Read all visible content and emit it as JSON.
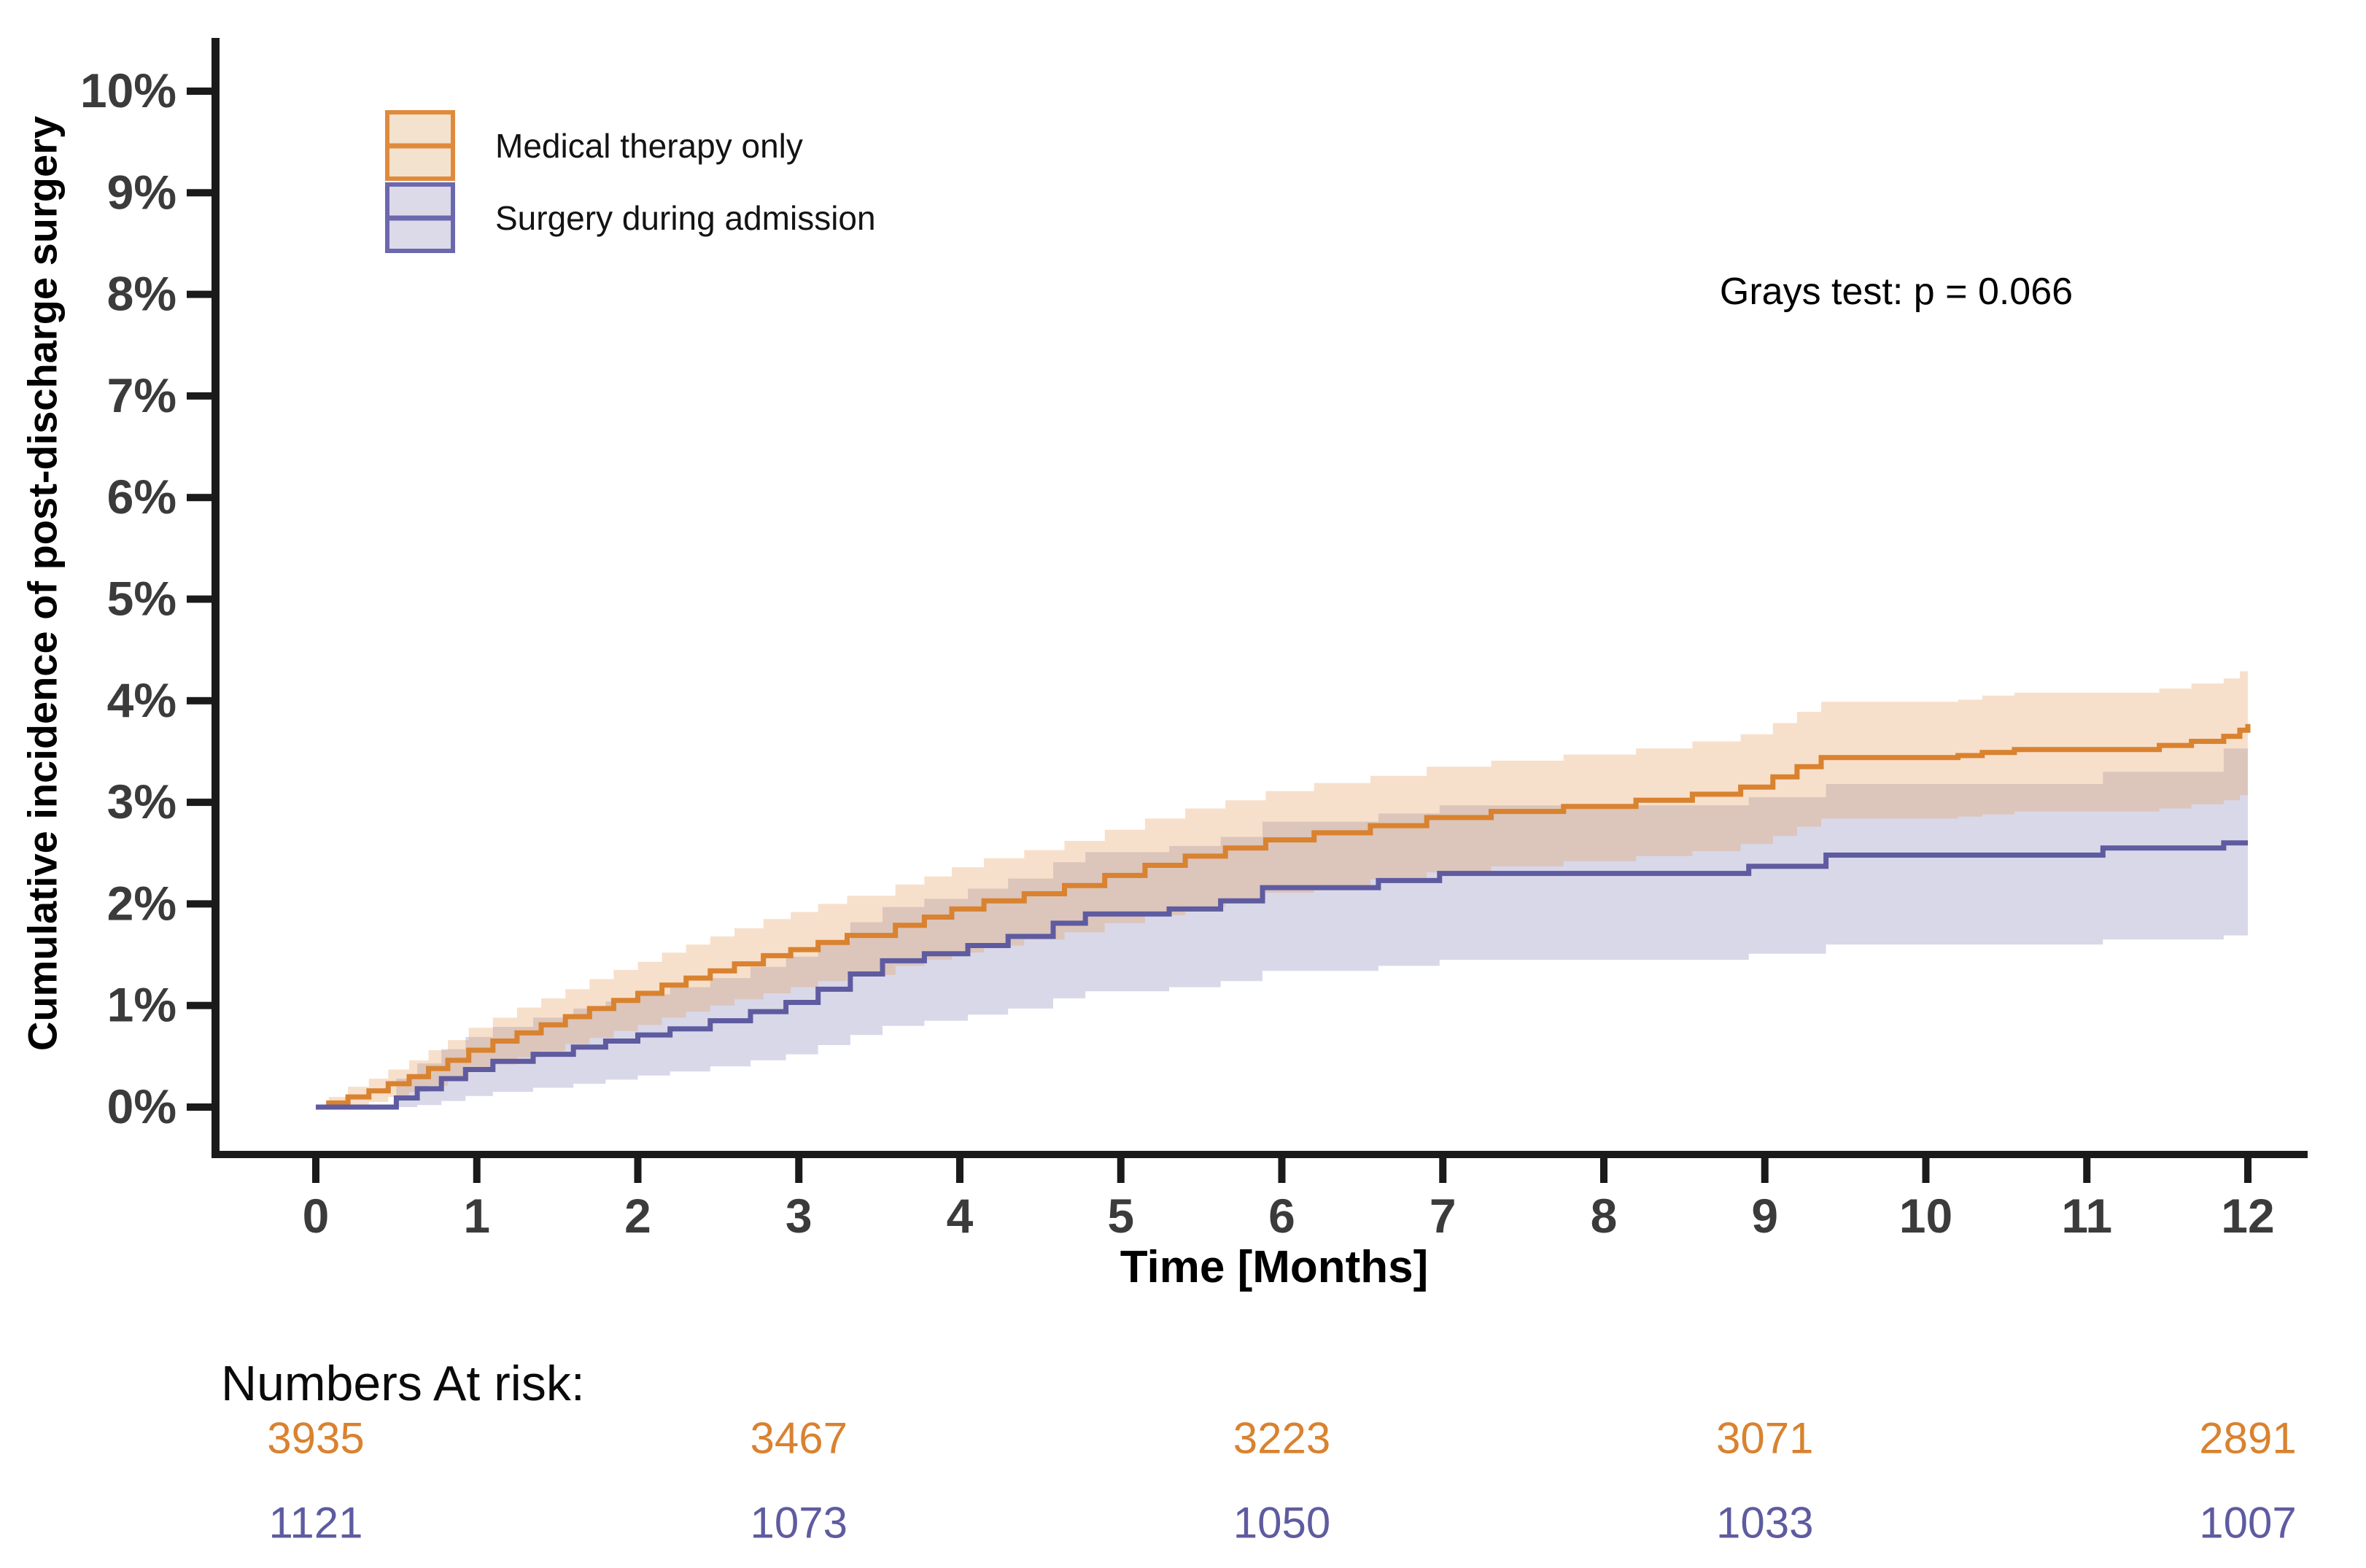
{
  "legend": {
    "items": [
      {
        "label": "Medical therapy only",
        "line_color": "#D9822F",
        "fill_color": "#F3E2CD"
      },
      {
        "label": "Surgery during admission",
        "line_color": "#5E5BA0",
        "fill_color": "#DCDAE9"
      }
    ]
  },
  "annotation": {
    "text": "Grays test: p = 0.066"
  },
  "chart_data": {
    "type": "line",
    "subtype": "cumulative-incidence-step-with-ci-bands",
    "title": "",
    "xlabel": "Time [Months]",
    "ylabel": "Cumulative incidence of post-discharge surgery",
    "xlim": [
      0,
      12
    ],
    "ylim": [
      0,
      10
    ],
    "grid": false,
    "legend_position": "top-left",
    "x_ticks": [
      0,
      1,
      2,
      3,
      4,
      5,
      6,
      7,
      8,
      9,
      10,
      11,
      12
    ],
    "y_ticks": [
      "0%",
      "1%",
      "2%",
      "3%",
      "4%",
      "5%",
      "6%",
      "7%",
      "8%",
      "9%",
      "10%"
    ],
    "axis_color": "#1a1a1a",
    "tick_label_color": "#3b3b3b",
    "series": [
      {
        "name": "Medical therapy only",
        "color": "#D9822F",
        "band_color": "rgba(228,152,82,0.30)",
        "points_format": [
          "t_months",
          "estimate_pct",
          "ci_low_pct",
          "ci_high_pct"
        ],
        "points": [
          [
            0,
            0,
            0,
            0
          ],
          [
            0.08,
            0.04,
            0,
            0.1
          ],
          [
            0.2,
            0.1,
            0.02,
            0.2
          ],
          [
            0.33,
            0.16,
            0.05,
            0.28
          ],
          [
            0.45,
            0.23,
            0.1,
            0.37
          ],
          [
            0.58,
            0.3,
            0.15,
            0.46
          ],
          [
            0.7,
            0.38,
            0.21,
            0.56
          ],
          [
            0.82,
            0.46,
            0.27,
            0.66
          ],
          [
            0.95,
            0.56,
            0.35,
            0.78
          ],
          [
            1.1,
            0.65,
            0.42,
            0.88
          ],
          [
            1.25,
            0.73,
            0.49,
            0.98
          ],
          [
            1.4,
            0.81,
            0.55,
            1.07
          ],
          [
            1.55,
            0.89,
            0.62,
            1.16
          ],
          [
            1.7,
            0.97,
            0.68,
            1.26
          ],
          [
            1.85,
            1.05,
            0.75,
            1.35
          ],
          [
            2.0,
            1.12,
            0.81,
            1.43
          ],
          [
            2.15,
            1.2,
            0.88,
            1.52
          ],
          [
            2.3,
            1.27,
            0.94,
            1.6
          ],
          [
            2.45,
            1.34,
            1.0,
            1.68
          ],
          [
            2.6,
            1.41,
            1.06,
            1.76
          ],
          [
            2.78,
            1.49,
            1.12,
            1.85
          ],
          [
            2.95,
            1.55,
            1.18,
            1.92
          ],
          [
            3.12,
            1.62,
            1.24,
            2.0
          ],
          [
            3.3,
            1.69,
            1.3,
            2.08
          ],
          [
            3.6,
            1.79,
            1.39,
            2.19
          ],
          [
            3.78,
            1.87,
            1.45,
            2.27
          ],
          [
            3.95,
            1.95,
            1.52,
            2.36
          ],
          [
            4.15,
            2.03,
            1.59,
            2.45
          ],
          [
            4.4,
            2.1,
            1.65,
            2.53
          ],
          [
            4.65,
            2.18,
            1.72,
            2.62
          ],
          [
            4.9,
            2.28,
            1.81,
            2.73
          ],
          [
            5.15,
            2.38,
            1.89,
            2.84
          ],
          [
            5.4,
            2.47,
            1.97,
            2.94
          ],
          [
            5.65,
            2.55,
            2.04,
            3.02
          ],
          [
            5.9,
            2.63,
            2.11,
            3.11
          ],
          [
            6.2,
            2.7,
            2.18,
            3.19
          ],
          [
            6.55,
            2.77,
            2.24,
            3.26
          ],
          [
            6.9,
            2.85,
            2.31,
            3.35
          ],
          [
            7.3,
            2.91,
            2.37,
            3.41
          ],
          [
            7.75,
            2.96,
            2.42,
            3.47
          ],
          [
            8.2,
            3.02,
            2.47,
            3.53
          ],
          [
            8.55,
            3.08,
            2.52,
            3.6
          ],
          [
            8.85,
            3.15,
            2.59,
            3.67
          ],
          [
            9.05,
            3.25,
            2.67,
            3.78
          ],
          [
            9.2,
            3.35,
            2.76,
            3.89
          ],
          [
            9.35,
            3.44,
            2.84,
            3.99
          ],
          [
            10.2,
            3.46,
            2.86,
            4.01
          ],
          [
            10.35,
            3.49,
            2.88,
            4.05
          ],
          [
            10.55,
            3.52,
            2.91,
            4.08
          ],
          [
            11.45,
            3.56,
            2.94,
            4.12
          ],
          [
            11.65,
            3.6,
            2.98,
            4.17
          ],
          [
            11.85,
            3.65,
            3.02,
            4.22
          ],
          [
            11.95,
            3.71,
            3.07,
            4.29
          ],
          [
            12,
            3.77,
            3.12,
            4.36
          ]
        ]
      },
      {
        "name": "Surgery during admission",
        "color": "#5E5BA0",
        "band_color": "rgba(96,93,162,0.24)",
        "points_format": [
          "t_months",
          "estimate_pct",
          "ci_low_pct",
          "ci_high_pct"
        ],
        "points": [
          [
            0,
            0,
            0,
            0
          ],
          [
            0.5,
            0.09,
            0,
            0.28
          ],
          [
            0.63,
            0.18,
            0.02,
            0.43
          ],
          [
            0.78,
            0.28,
            0.06,
            0.57
          ],
          [
            0.93,
            0.37,
            0.11,
            0.69
          ],
          [
            1.1,
            0.45,
            0.15,
            0.79
          ],
          [
            1.35,
            0.52,
            0.19,
            0.88
          ],
          [
            1.6,
            0.59,
            0.23,
            0.97
          ],
          [
            1.8,
            0.65,
            0.27,
            1.04
          ],
          [
            2.0,
            0.71,
            0.31,
            1.11
          ],
          [
            2.2,
            0.77,
            0.35,
            1.18
          ],
          [
            2.45,
            0.85,
            0.4,
            1.27
          ],
          [
            2.7,
            0.94,
            0.46,
            1.38
          ],
          [
            2.92,
            1.03,
            0.52,
            1.48
          ],
          [
            3.12,
            1.16,
            0.61,
            1.64
          ],
          [
            3.32,
            1.31,
            0.71,
            1.82
          ],
          [
            3.52,
            1.44,
            0.8,
            1.97
          ],
          [
            3.78,
            1.51,
            0.85,
            2.05
          ],
          [
            4.05,
            1.59,
            0.91,
            2.15
          ],
          [
            4.3,
            1.68,
            0.97,
            2.25
          ],
          [
            4.58,
            1.81,
            1.07,
            2.41
          ],
          [
            4.78,
            1.9,
            1.14,
            2.51
          ],
          [
            5.3,
            1.95,
            1.18,
            2.57
          ],
          [
            5.62,
            2.03,
            1.24,
            2.66
          ],
          [
            5.88,
            2.16,
            1.34,
            2.81
          ],
          [
            6.6,
            2.23,
            1.39,
            2.89
          ],
          [
            6.98,
            2.3,
            1.45,
            2.97
          ],
          [
            8.9,
            2.37,
            1.51,
            3.05
          ],
          [
            9.38,
            2.48,
            1.6,
            3.18
          ],
          [
            11.1,
            2.55,
            1.65,
            3.3
          ],
          [
            11.85,
            2.6,
            1.69,
            3.53
          ],
          [
            12,
            2.6,
            1.69,
            3.53
          ]
        ]
      }
    ],
    "annotation": "Grays test: p = 0.066",
    "risk_table": {
      "title": "Numbers At risk:",
      "times": [
        0,
        3,
        6,
        9,
        12
      ],
      "rows": [
        {
          "name": "Medical therapy only",
          "color": "#D9822F",
          "values": [
            3935,
            3467,
            3223,
            3071,
            2891
          ]
        },
        {
          "name": "Surgery during admission",
          "color": "#5E5BA0",
          "values": [
            1121,
            1073,
            1050,
            1033,
            1007
          ]
        }
      ]
    }
  }
}
